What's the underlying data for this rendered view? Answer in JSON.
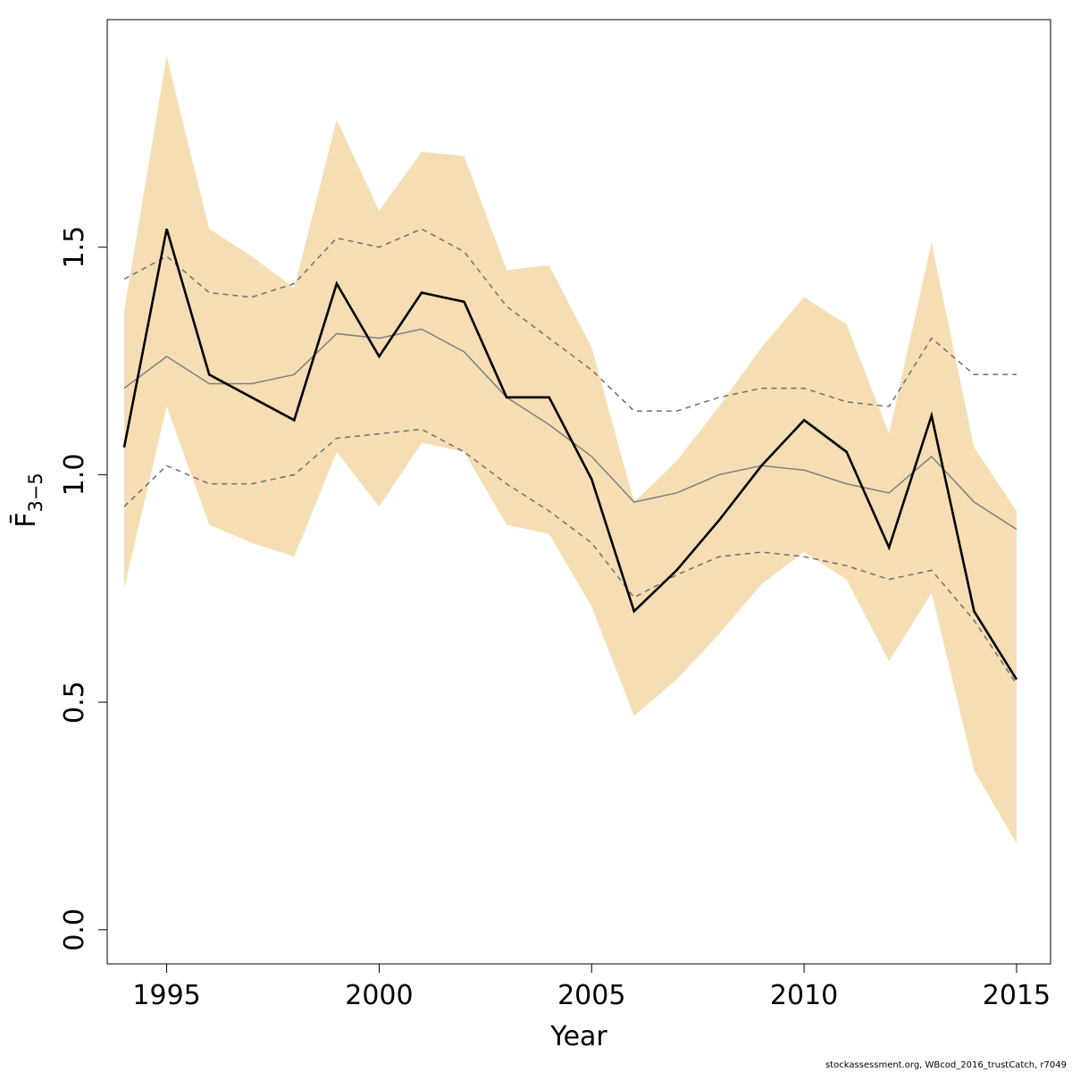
{
  "chart_data": {
    "type": "line",
    "xlabel": "Year",
    "ylabel": "F̄",
    "ylabel_sub": "3−5",
    "xlim": [
      1993.6,
      2015.8
    ],
    "ylim": [
      -0.075,
      2.0
    ],
    "x_ticks": [
      1995,
      2000,
      2005,
      2010,
      2015
    ],
    "y_ticks": [
      0.0,
      0.5,
      1.0,
      1.5
    ],
    "y_tick_labels": [
      "0.0",
      "0.5",
      "1.0",
      "1.5"
    ],
    "x": [
      1994,
      1995,
      1996,
      1997,
      1998,
      1999,
      2000,
      2001,
      2002,
      2003,
      2004,
      2005,
      2006,
      2007,
      2008,
      2009,
      2010,
      2011,
      2012,
      2013,
      2014,
      2015
    ],
    "band": {
      "color": "#f5deb3",
      "upper": [
        1.36,
        1.92,
        1.54,
        1.48,
        1.41,
        1.78,
        1.58,
        1.71,
        1.7,
        1.45,
        1.46,
        1.28,
        0.94,
        1.03,
        1.15,
        1.28,
        1.39,
        1.33,
        1.09,
        1.51,
        1.06,
        0.92
      ],
      "lower": [
        0.75,
        1.15,
        0.89,
        0.85,
        0.82,
        1.05,
        0.93,
        1.07,
        1.05,
        0.89,
        0.87,
        0.71,
        0.47,
        0.55,
        0.65,
        0.76,
        0.83,
        0.77,
        0.59,
        0.74,
        0.35,
        0.19
      ]
    },
    "series": [
      {
        "role": "estimate",
        "color": "#000000",
        "values": [
          1.06,
          1.54,
          1.22,
          1.17,
          1.12,
          1.42,
          1.26,
          1.4,
          1.38,
          1.17,
          1.17,
          0.99,
          0.7,
          0.79,
          0.9,
          1.02,
          1.12,
          1.05,
          0.84,
          1.13,
          0.7,
          0.55
        ]
      },
      {
        "role": "median",
        "color": "#808080",
        "values": [
          1.19,
          1.26,
          1.2,
          1.2,
          1.22,
          1.31,
          1.3,
          1.32,
          1.27,
          1.17,
          1.11,
          1.04,
          0.94,
          0.96,
          1.0,
          1.02,
          1.01,
          0.98,
          0.96,
          1.04,
          0.94,
          0.88
        ]
      },
      {
        "role": "upper-dashed",
        "color": "#707070",
        "values": [
          1.43,
          1.48,
          1.4,
          1.39,
          1.42,
          1.52,
          1.5,
          1.54,
          1.49,
          1.37,
          1.3,
          1.23,
          1.14,
          1.14,
          1.17,
          1.19,
          1.19,
          1.16,
          1.15,
          1.3,
          1.22,
          1.22
        ]
      },
      {
        "role": "lower-dashed",
        "color": "#707070",
        "values": [
          0.93,
          1.02,
          0.98,
          0.98,
          1.0,
          1.08,
          1.09,
          1.1,
          1.05,
          0.98,
          0.92,
          0.85,
          0.73,
          0.78,
          0.82,
          0.83,
          0.82,
          0.8,
          0.77,
          0.79,
          0.68,
          0.54
        ]
      }
    ],
    "grid": false,
    "legend": "none"
  },
  "footer": {
    "text": "stockassessment.org, WBcod_2016_trustCatch, r7049"
  }
}
